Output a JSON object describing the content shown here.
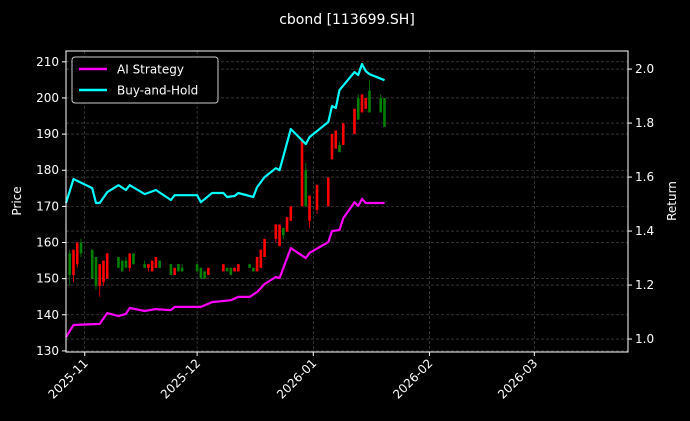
{
  "chart_data": {
    "type": "line",
    "title": "cbond [113699.SH]",
    "ylabel": "Price",
    "y2label": "Return",
    "xlim": [
      "2025-10-27",
      "2026-03-26"
    ],
    "ylim": [
      129.7,
      213.0
    ],
    "y2lim": [
      0.952,
      2.067
    ],
    "xticks": [
      "2025-11",
      "2025-12",
      "2026-01",
      "2026-02",
      "2026-03"
    ],
    "xtick_dates": [
      "2025-11-01",
      "2025-12-01",
      "2026-01-01",
      "2026-02-01",
      "2026-03-01"
    ],
    "yticks": [
      130,
      140,
      150,
      160,
      170,
      180,
      190,
      200,
      210
    ],
    "y2ticks": [
      "1.0",
      "1.2",
      "1.4",
      "1.6",
      "1.8",
      "2.0"
    ],
    "grid": true,
    "legend_position": "top-left",
    "colors": {
      "background": "#000000",
      "up": "#ff0000",
      "down": "#008000",
      "ai": "#ff00ff",
      "bh": "#00ffff",
      "grid": "#555555"
    },
    "candles": [
      [
        "2025-10-28",
        157,
        158,
        148,
        151
      ],
      [
        "2025-10-29",
        151,
        158,
        149,
        158
      ],
      [
        "2025-10-30",
        154,
        160,
        153,
        160
      ],
      [
        "2025-10-31",
        160,
        161,
        156,
        157
      ],
      [
        "2025-11-03",
        158,
        158,
        150,
        150
      ],
      [
        "2025-11-04",
        156,
        156,
        147,
        148
      ],
      [
        "2025-11-05",
        148,
        154,
        145,
        154
      ],
      [
        "2025-11-06",
        149,
        155,
        148,
        155
      ],
      [
        "2025-11-07",
        150,
        157,
        150,
        157
      ],
      [
        "2025-11-10",
        156,
        156,
        153,
        153
      ],
      [
        "2025-11-11",
        155,
        155,
        152,
        152
      ],
      [
        "2025-11-12",
        155,
        156,
        153,
        153
      ],
      [
        "2025-11-13",
        153,
        157,
        152,
        157
      ],
      [
        "2025-11-14",
        157,
        157,
        154,
        154
      ],
      [
        "2025-11-17",
        154,
        155,
        153,
        153
      ],
      [
        "2025-11-18",
        153,
        154,
        152,
        154
      ],
      [
        "2025-11-19",
        152,
        155,
        152,
        155
      ],
      [
        "2025-11-20",
        153,
        156,
        153,
        156
      ],
      [
        "2025-11-21",
        155,
        155,
        153,
        153
      ],
      [
        "2025-11-24",
        154,
        154,
        151,
        151
      ],
      [
        "2025-11-25",
        151,
        153,
        151,
        153
      ],
      [
        "2025-11-26",
        154,
        154,
        152,
        152
      ],
      [
        "2025-11-27",
        153,
        154,
        152,
        152
      ],
      [
        "2025-12-01",
        154,
        154,
        152,
        152
      ],
      [
        "2025-12-02",
        153,
        153,
        150,
        150
      ],
      [
        "2025-12-03",
        152,
        152,
        150,
        150
      ],
      [
        "2025-12-04",
        151,
        153,
        151,
        153
      ],
      [
        "2025-12-08",
        152,
        154,
        152,
        154
      ],
      [
        "2025-12-09",
        153,
        153,
        152,
        152
      ],
      [
        "2025-12-10",
        153,
        153,
        151,
        151
      ],
      [
        "2025-12-11",
        152,
        153,
        152,
        153
      ],
      [
        "2025-12-12",
        152,
        154,
        152,
        154
      ],
      [
        "2025-12-15",
        154,
        154,
        153,
        153
      ],
      [
        "2025-12-16",
        153,
        153,
        152,
        152
      ],
      [
        "2025-12-17",
        152,
        156,
        152,
        156
      ],
      [
        "2025-12-18",
        153,
        158,
        153,
        158
      ],
      [
        "2025-12-19",
        156,
        161,
        156,
        161
      ],
      [
        "2025-12-22",
        161,
        165,
        160,
        165
      ],
      [
        "2025-12-23",
        159,
        165,
        159,
        165
      ],
      [
        "2025-12-24",
        164,
        164,
        161,
        162
      ],
      [
        "2025-12-25",
        163,
        167,
        163,
        167
      ],
      [
        "2025-12-26",
        166,
        170,
        166,
        170
      ],
      [
        "2025-12-29",
        170,
        189,
        170,
        188
      ],
      [
        "2025-12-30",
        180,
        182,
        170,
        170
      ],
      [
        "2025-12-31",
        166,
        173,
        164,
        173
      ],
      [
        "2026-01-02",
        169,
        176,
        168,
        176
      ],
      [
        "2026-01-05",
        170,
        178,
        170,
        178
      ],
      [
        "2026-01-06",
        183,
        190,
        183,
        190
      ],
      [
        "2026-01-07",
        186,
        191,
        186,
        191
      ],
      [
        "2026-01-08",
        187,
        188,
        185,
        185
      ],
      [
        "2026-01-09",
        187,
        193,
        187,
        193
      ],
      [
        "2026-01-12",
        190,
        197,
        190,
        197
      ],
      [
        "2026-01-13",
        200,
        201,
        194,
        194
      ],
      [
        "2026-01-14",
        196,
        201,
        196,
        201
      ],
      [
        "2026-01-15",
        197,
        200,
        197,
        200
      ],
      [
        "2026-01-16",
        202,
        205,
        196,
        196
      ],
      [
        "2026-01-19",
        200,
        201,
        196,
        196
      ],
      [
        "2026-01-20",
        200,
        200,
        192,
        192
      ]
    ],
    "series": [
      {
        "name": "AI Strategy",
        "axis": "right",
        "color": "#ff00ff",
        "x": [
          "2025-10-27",
          "2025-10-29",
          "2025-11-05",
          "2025-11-07",
          "2025-11-10",
          "2025-11-12",
          "2025-11-13",
          "2025-11-17",
          "2025-11-20",
          "2025-11-24",
          "2025-11-25",
          "2025-12-02",
          "2025-12-05",
          "2025-12-10",
          "2025-12-12",
          "2025-12-15",
          "2025-12-17",
          "2025-12-19",
          "2025-12-22",
          "2025-12-23",
          "2025-12-26",
          "2025-12-30",
          "2025-12-31",
          "2026-01-05",
          "2026-01-06",
          "2026-01-08",
          "2026-01-09",
          "2026-01-12",
          "2026-01-13",
          "2026-01-14",
          "2026-01-15",
          "2026-01-20"
        ],
        "values": [
          1.007,
          1.052,
          1.056,
          1.096,
          1.085,
          1.093,
          1.115,
          1.104,
          1.111,
          1.107,
          1.119,
          1.119,
          1.137,
          1.144,
          1.156,
          1.156,
          1.174,
          1.204,
          1.23,
          1.226,
          1.337,
          1.3,
          1.319,
          1.359,
          1.4,
          1.404,
          1.448,
          1.507,
          1.493,
          1.519,
          1.504,
          1.504
        ]
      },
      {
        "name": "Buy-and-Hold",
        "axis": "right",
        "color": "#00ffff",
        "x": [
          "2025-10-27",
          "2025-10-29",
          "2025-11-03",
          "2025-11-04",
          "2025-11-05",
          "2025-11-07",
          "2025-11-10",
          "2025-11-12",
          "2025-11-13",
          "2025-11-17",
          "2025-11-20",
          "2025-11-24",
          "2025-11-25",
          "2025-12-01",
          "2025-12-02",
          "2025-12-05",
          "2025-12-08",
          "2025-12-09",
          "2025-12-11",
          "2025-12-12",
          "2025-12-15",
          "2025-12-16",
          "2025-12-17",
          "2025-12-19",
          "2025-12-22",
          "2025-12-23",
          "2025-12-26",
          "2025-12-30",
          "2025-12-31",
          "2026-01-05",
          "2026-01-06",
          "2026-01-07",
          "2026-01-08",
          "2026-01-12",
          "2026-01-13",
          "2026-01-14",
          "2026-01-15",
          "2026-01-16",
          "2026-01-20"
        ],
        "values": [
          1.504,
          1.593,
          1.559,
          1.504,
          1.504,
          1.544,
          1.57,
          1.552,
          1.57,
          1.537,
          1.552,
          1.515,
          1.533,
          1.533,
          1.507,
          1.541,
          1.541,
          1.526,
          1.53,
          1.541,
          1.53,
          1.526,
          1.563,
          1.6,
          1.633,
          1.626,
          1.778,
          1.722,
          1.748,
          1.804,
          1.863,
          1.856,
          1.922,
          1.989,
          1.978,
          2.019,
          1.993,
          1.981,
          1.959
        ]
      }
    ]
  }
}
